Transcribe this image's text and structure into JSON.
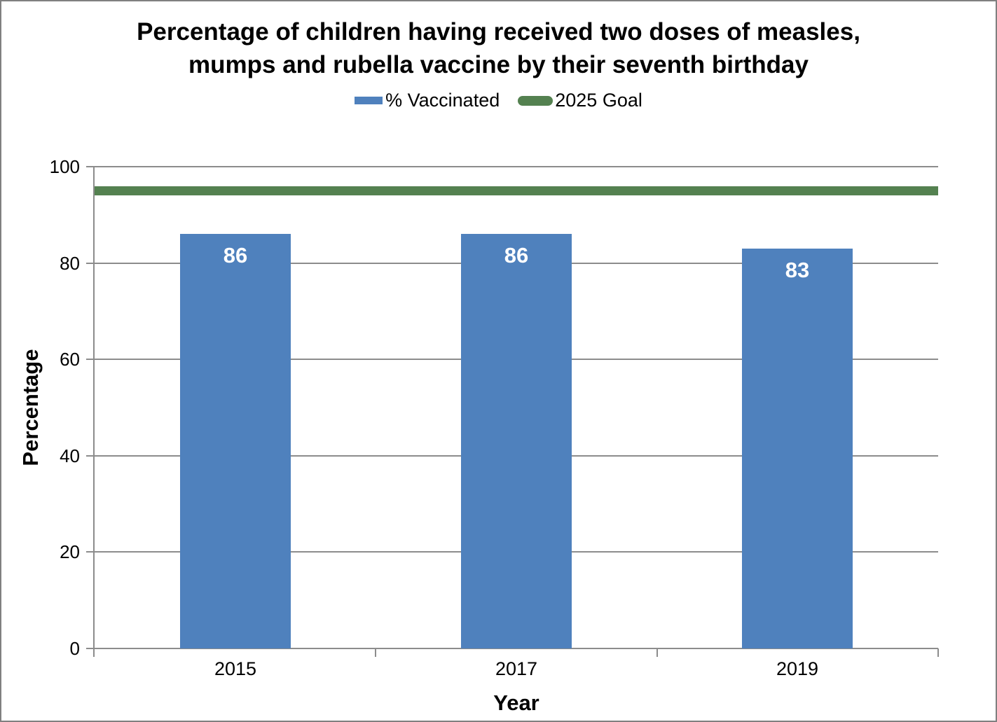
{
  "page": {
    "background": "#ffffff",
    "border_color": "#808080"
  },
  "chart_data": {
    "type": "bar",
    "title": "Percentage of children having received two doses of measles, mumps and rubella vaccine by their seventh birthday",
    "title_lines": [
      "Percentage of children having received two doses of measles,",
      "mumps and rubella vaccine by their seventh birthday"
    ],
    "categories": [
      "2015",
      "2017",
      "2019"
    ],
    "series": [
      {
        "name": "% Vaccinated",
        "type": "bar",
        "values": [
          86,
          86,
          83
        ],
        "color": "#4F81BD"
      },
      {
        "name": "2025 Goal",
        "type": "line",
        "value": 95,
        "color": "#548150"
      }
    ],
    "data_labels": [
      "86",
      "86",
      "83"
    ],
    "xlabel": "Year",
    "ylabel": "Percentage",
    "ylim": [
      0,
      100
    ],
    "yticks": [
      0,
      20,
      40,
      60,
      80,
      100
    ],
    "grid": true,
    "legend_position": "top-center",
    "colors": {
      "bar": "#4F81BD",
      "goal": "#548150",
      "gridline": "#8C8C8C",
      "axis": "#8C8C8C",
      "bar_label_text": "#FFFFFF",
      "text": "#000000"
    }
  }
}
